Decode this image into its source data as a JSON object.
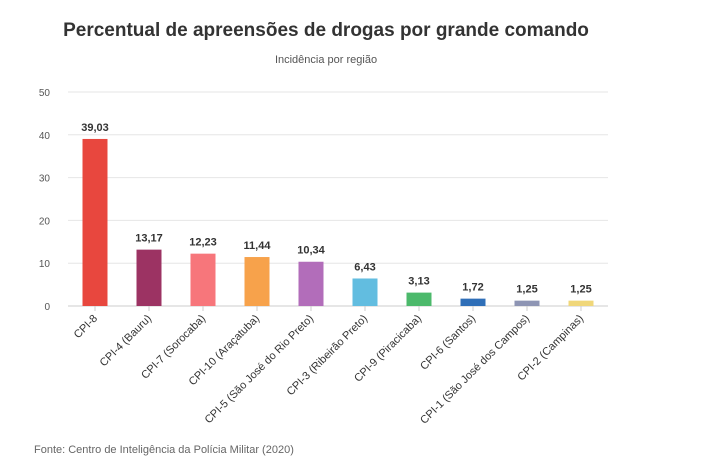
{
  "chart_data": {
    "type": "bar",
    "title": "Percentual de apreensões de drogas por grande comando",
    "subtitle": "Incidência por região",
    "source": "Fonte: Centro de Inteligência da Polícia Militar (2020)",
    "categories": [
      "CPI-8",
      "CPI-4 (Bauru)",
      "CPI-7 (Sorocaba)",
      "CPI-10 (Araçatuba)",
      "CPI-5 (São José do Rio Preto)",
      "CPI-3 (Ribeirão Preto)",
      "CPI-9 (Piracicaba)",
      "CPI-6 (Santos)",
      "CPI-1 (São José dos Campos)",
      "CPI-2 (Campinas)"
    ],
    "values": [
      39.03,
      13.17,
      12.23,
      11.44,
      10.34,
      6.43,
      3.13,
      1.72,
      1.25,
      1.25
    ],
    "value_labels": [
      "39,03",
      "13,17",
      "12,23",
      "11,44",
      "10,34",
      "6,43",
      "3,13",
      "1,72",
      "1,25",
      "1,25"
    ],
    "colors": [
      "#e8473e",
      "#9c3363",
      "#f7767b",
      "#f7a24b",
      "#b26dba",
      "#62bde0",
      "#4cb96b",
      "#2f6fb8",
      "#8e95b4",
      "#f0d77a"
    ],
    "ylim": [
      0,
      50
    ],
    "yticks": [
      "0",
      "10",
      "20",
      "30",
      "40",
      "50"
    ],
    "ytick_values": [
      0,
      10,
      20,
      30,
      40,
      50
    ],
    "grid": true,
    "legend": "none"
  }
}
